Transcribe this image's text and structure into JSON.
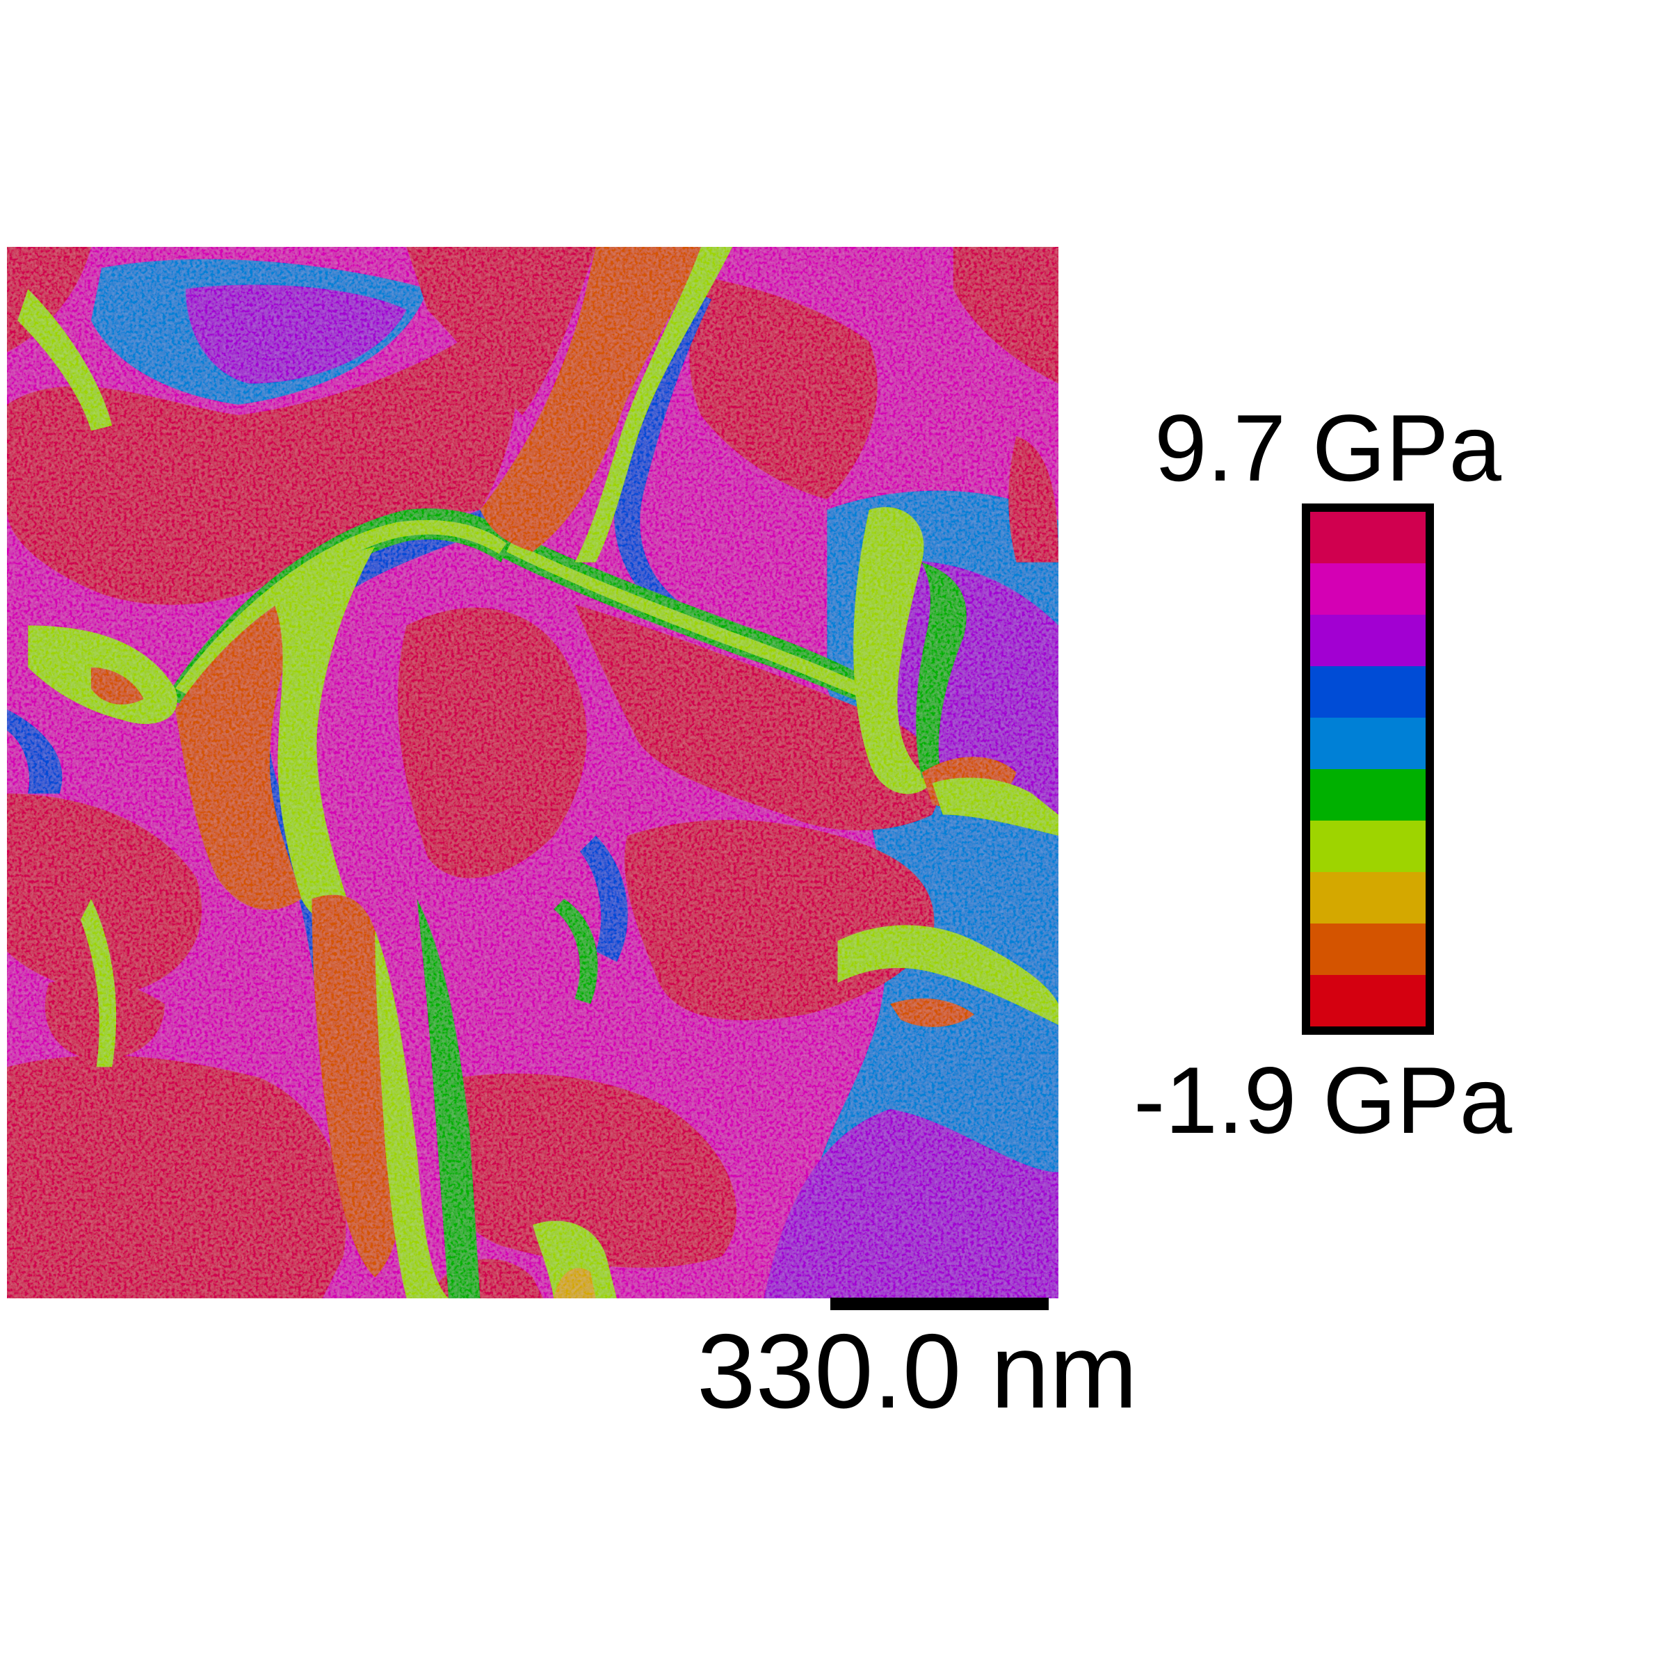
{
  "colorbar": {
    "max_label": "9.7 GPa",
    "min_label": "-1.9 GPa",
    "colors": [
      "#d0004f",
      "#d400b4",
      "#a200d2",
      "#004cd6",
      "#0080d6",
      "#00b000",
      "#9ed400",
      "#d4a800",
      "#d45400",
      "#d40010"
    ]
  },
  "scale_bar": {
    "label": "330.0 nm"
  },
  "map_palette": {
    "magenta_red": "#d0004f",
    "magenta": "#d400b4",
    "purple": "#a200d2",
    "blue": "#004cd6",
    "light_blue": "#0080d6",
    "green": "#00b000",
    "yellow_green": "#9ed400",
    "gold": "#d4a800",
    "orange": "#d45400",
    "red": "#d40010"
  }
}
